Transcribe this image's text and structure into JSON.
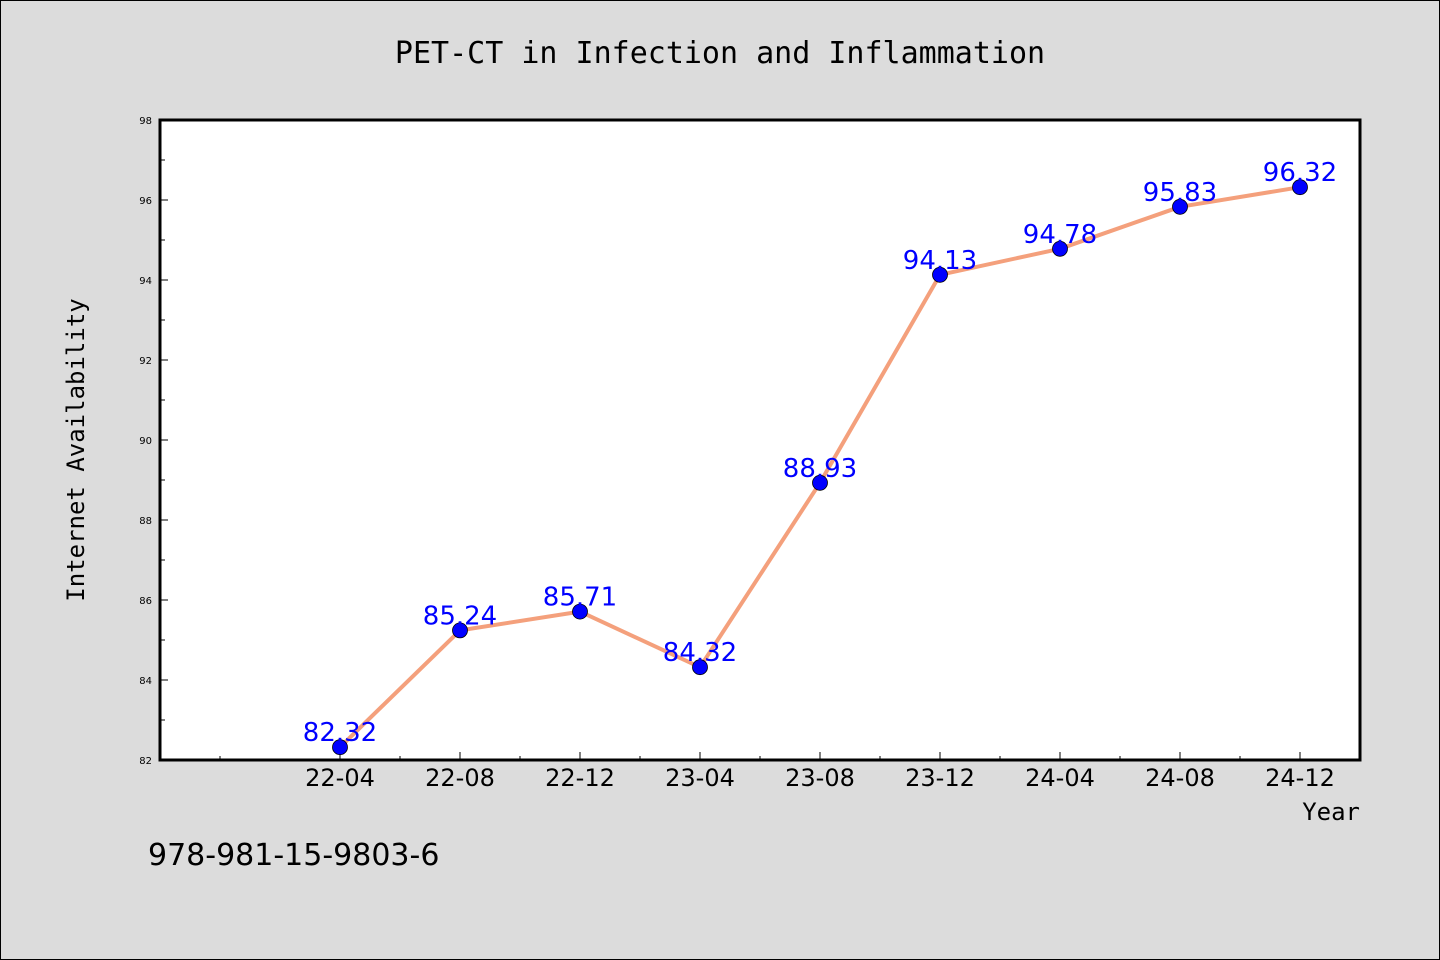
{
  "footnote": "978-981-15-9803-6",
  "colors": {
    "background": "#dcdcdc",
    "plot_background": "#ffffff",
    "line": "#f4a07c",
    "marker": "#0000ff",
    "data_label": "#0000ff"
  },
  "chart_data": {
    "type": "line",
    "title": "PET-CT in Infection and Inflammation",
    "xlabel": "Year",
    "ylabel": "Internet Availability",
    "categories": [
      "22-04",
      "22-08",
      "22-12",
      "23-04",
      "23-08",
      "23-12",
      "24-04",
      "24-08",
      "24-12"
    ],
    "series": [
      {
        "values": [
          82.32,
          85.24,
          85.71,
          84.32,
          88.93,
          94.13,
          94.78,
          95.83,
          96.32
        ],
        "labels": [
          "82.32",
          "85.24",
          "85.71",
          "84.32",
          "88.93",
          "94.13",
          "94.78",
          "95.83",
          "96.32"
        ]
      }
    ],
    "ylim": [
      82,
      98
    ],
    "yticks": [
      "82",
      "84",
      "86",
      "88",
      "90",
      "92",
      "94",
      "96",
      "98"
    ],
    "grid": false,
    "legend": "none"
  }
}
